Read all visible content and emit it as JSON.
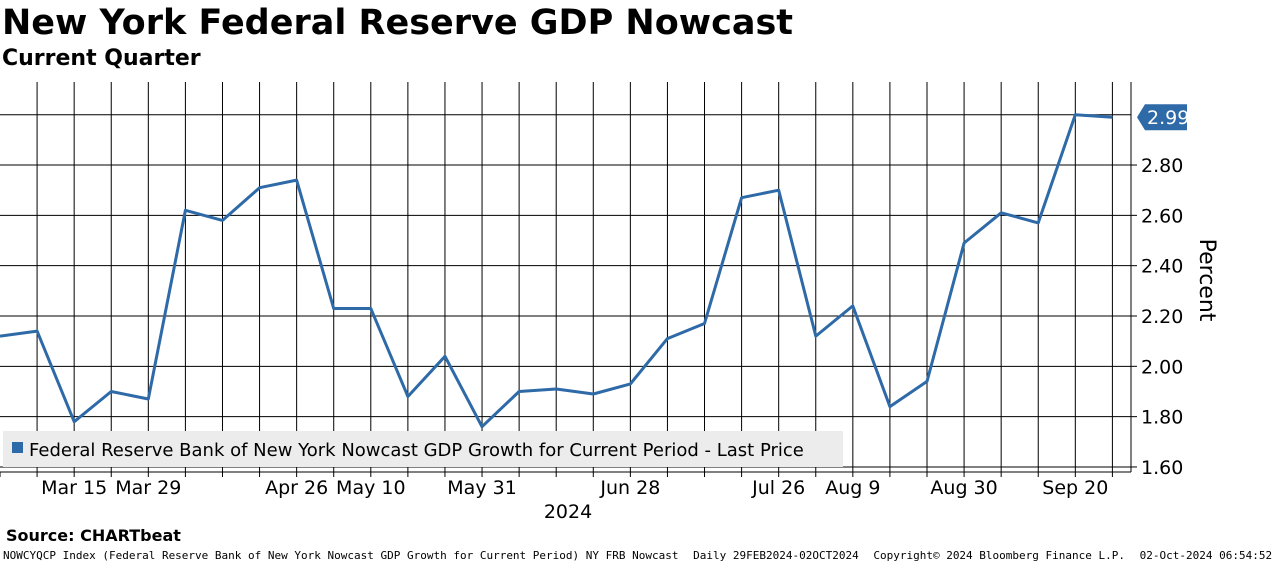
{
  "header": {
    "title": "New York Federal Reserve GDP Nowcast",
    "subtitle": "Current Quarter"
  },
  "source": "Source: CHARTbeat",
  "footer": {
    "index": "NOWCYQCP Index (Federal Reserve Bank of New York Nowcast GDP Growth for Current Period) NY FRB Nowcast",
    "range": "Daily 29FEB2024-02OCT2024",
    "copyright": "Copyright© 2024 Bloomberg Finance L.P.",
    "timestamp": "02-Oct-2024 06:54:52"
  },
  "colors": {
    "series": "#2e6aa7",
    "grid": "#000000",
    "legend_bg": "#ececec",
    "label_bg": "#2e6aa7"
  },
  "chart_data": {
    "type": "line",
    "title": "New York Federal Reserve GDP Nowcast",
    "subtitle": "Current Quarter",
    "ylabel": "Percent",
    "xlabel": "2024",
    "ylim": [
      1.58,
      3.13
    ],
    "y_ticks": [
      "1.60",
      "1.80",
      "2.00",
      "2.20",
      "2.40",
      "2.60",
      "2.80"
    ],
    "x_range": [
      0,
      30
    ],
    "x_tick_labels": [
      {
        "label": "Mar 15",
        "x": 2
      },
      {
        "label": "Mar 29",
        "x": 4
      },
      {
        "label": "Apr 26",
        "x": 8
      },
      {
        "label": "May 10",
        "x": 10
      },
      {
        "label": "May 31",
        "x": 13
      },
      {
        "label": "Jun 28",
        "x": 17
      },
      {
        "label": "Jul 26",
        "x": 21
      },
      {
        "label": "Aug 9",
        "x": 23
      },
      {
        "label": "Aug 30",
        "x": 26
      },
      {
        "label": "Sep 20",
        "x": 29
      }
    ],
    "year_label": {
      "label": "2024",
      "x": 15.5
    },
    "grid": true,
    "series": [
      {
        "name": "Federal Reserve Bank of New York Nowcast GDP Growth for Current Period - Last Price",
        "last_price": "2.99",
        "x": [
          0,
          1,
          2,
          3,
          4,
          5,
          6,
          7,
          8,
          9,
          10,
          11,
          12,
          13,
          14,
          15,
          16,
          17,
          18,
          19,
          20,
          21,
          22,
          23,
          24,
          25,
          26,
          27,
          28,
          29,
          30
        ],
        "values": [
          2.12,
          2.14,
          1.78,
          1.9,
          1.87,
          2.62,
          2.58,
          2.71,
          2.74,
          2.23,
          2.23,
          1.88,
          2.04,
          1.76,
          1.9,
          1.91,
          1.89,
          1.93,
          2.11,
          2.17,
          2.67,
          2.7,
          2.12,
          2.24,
          1.84,
          1.94,
          2.49,
          2.61,
          2.57,
          3.0,
          2.99
        ]
      }
    ],
    "legend": "bottom-left"
  }
}
